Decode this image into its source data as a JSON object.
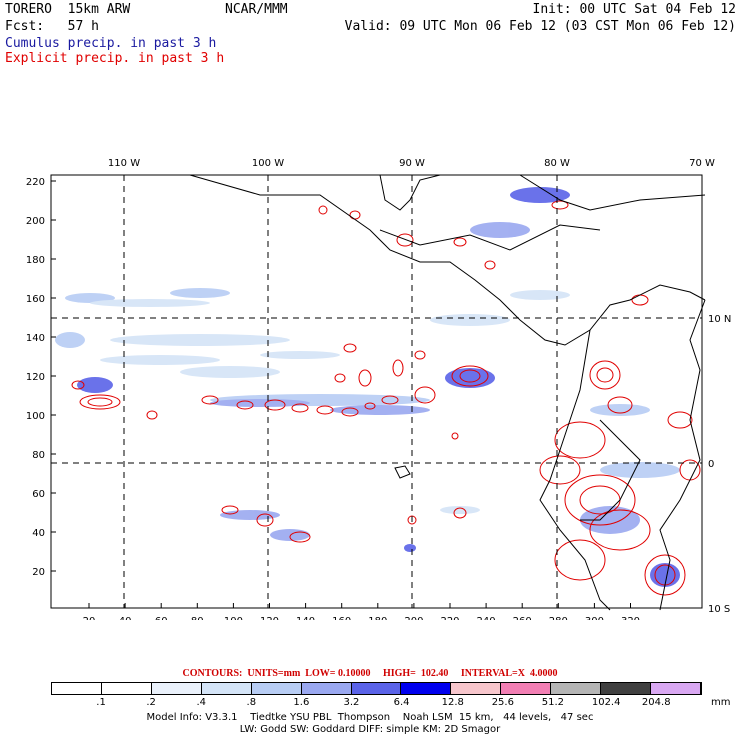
{
  "header": {
    "model": "TORERO  15km ARW",
    "org": "NCAR/MMM",
    "init": "Init: 00 UTC Sat 04 Feb 12",
    "fcst": "Fcst:   57 h",
    "valid": "Valid: 09 UTC Mon 06 Feb 12 (03 CST Mon 06 Feb 12)",
    "cumulus_legend": "Cumulus precip. in past 3 h",
    "explicit_legend": "Explicit precip. in past 3 h"
  },
  "map": {
    "lon_labels": [
      "110 W",
      "100 W",
      "90 W",
      "80 W",
      "70 W"
    ],
    "lat_labels": [
      "10 N",
      "0",
      "10 S"
    ],
    "x_ticks": [
      "20",
      "40",
      "60",
      "80",
      "100",
      "120",
      "140",
      "160",
      "180",
      "200",
      "220",
      "240",
      "260",
      "280",
      "300",
      "320"
    ],
    "y_ticks": [
      "220",
      "200",
      "180",
      "160",
      "140",
      "120",
      "100",
      "80",
      "60",
      "40",
      "20"
    ]
  },
  "contours_line": {
    "label": "CONTOURS:",
    "units": "UNITS=mm",
    "low": "LOW= 0.10000",
    "high": "HIGH=  102.40",
    "interval": "INTERVAL=X  4.0000"
  },
  "colorbar": {
    "units": "mm",
    "labels": [
      ".1",
      ".2",
      ".4",
      ".8",
      "1.6",
      "3.2",
      "6.4",
      "12.8",
      "25.6",
      "51.2",
      "102.4",
      "204.8"
    ],
    "colors": [
      "#ffffff",
      "#ffffff",
      "#eaf1fb",
      "#d4e4f7",
      "#b8cdf4",
      "#9aa8f0",
      "#5a63e8",
      "#0000ee",
      "#f7c6cc",
      "#f27fb4",
      "#b5b5b5",
      "#404040",
      "#d9a8f2"
    ]
  },
  "footer": {
    "line1": "Model Info: V3.3.1    Tiedtke YSU PBL  Thompson    Noah LSM  15 km,   44 levels,   47 sec",
    "line2": "LW: Godd SW: Goddard DIFF: simple KM: 2D Smagor"
  },
  "colors": {
    "cumulus": "#1a1aa0",
    "explicit": "#e00000"
  }
}
